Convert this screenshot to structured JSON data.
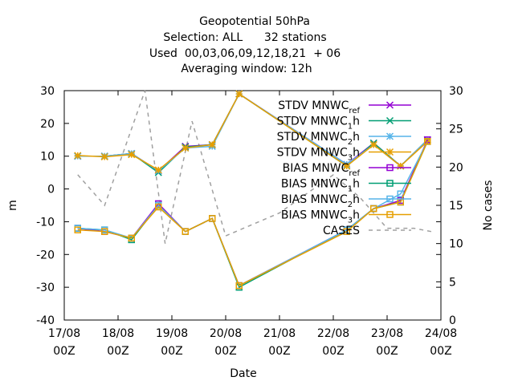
{
  "chart_data": {
    "type": "line",
    "title": [
      "Geopotential 50hPa",
      "Selection: ALL      32 stations",
      "Used  00,03,06,09,12,18,21  + 06",
      "Averaging window: 12h"
    ],
    "xlabel": "Date",
    "ylabel": "m",
    "y2label": "No cases",
    "xlim": [
      "17/08 00Z",
      "24/08 00Z"
    ],
    "ylim": [
      -40,
      30
    ],
    "y2lim": [
      0,
      30
    ],
    "x_ticks": [
      {
        "line1": "17/08",
        "line2": "00Z"
      },
      {
        "line1": "18/08",
        "line2": "00Z"
      },
      {
        "line1": "19/08",
        "line2": "00Z"
      },
      {
        "line1": "20/08",
        "line2": "00Z"
      },
      {
        "line1": "21/08",
        "line2": "00Z"
      },
      {
        "line1": "22/08",
        "line2": "00Z"
      },
      {
        "line1": "23/08",
        "line2": "00Z"
      },
      {
        "line1": "24/08",
        "line2": "00Z"
      }
    ],
    "y_ticks": [
      "30",
      "20",
      "10",
      "0",
      "-10",
      "-20",
      "-30",
      "-40"
    ],
    "y2_ticks": [
      "30",
      "25",
      "20",
      "15",
      "10",
      "5",
      "0"
    ],
    "grid": false,
    "legend_position": "top-right",
    "x": [
      "17/08 06Z",
      "17/08 18Z",
      "18/08 06Z",
      "18/08 18Z",
      "19/08 06Z",
      "19/08 18Z",
      "20/08 06Z",
      "22/08 06Z",
      "22/08 18Z",
      "23/08 06Z",
      "23/08 18Z"
    ],
    "series": [
      {
        "name": "STDV MNWC_ref",
        "label_main": "STDV MNWC",
        "label_sub": "ref",
        "axis": "left",
        "color": "#9400d3",
        "marker": "x-cross",
        "dash": "solid",
        "values": [
          10,
          10,
          10.8,
          5.5,
          13,
          13.5,
          29,
          7.5,
          14,
          7,
          15
        ]
      },
      {
        "name": "STDV MNWC_1h",
        "label_main": "STDV MNWC",
        "label_sub": "1",
        "label_tail": "h",
        "axis": "left",
        "color": "#009e73",
        "marker": "x-cross",
        "dash": "solid",
        "values": [
          10,
          10,
          10.8,
          5,
          12.8,
          13.5,
          29,
          7,
          14,
          7,
          15
        ]
      },
      {
        "name": "STDV MNWC_2h",
        "label_main": "STDV MNWC",
        "label_sub": "2",
        "label_tail": "h",
        "axis": "left",
        "color": "#56b4e9",
        "marker": "asterisk",
        "dash": "solid",
        "values": [
          10,
          10,
          10.8,
          5.5,
          12.5,
          13,
          29,
          7.5,
          13.5,
          7,
          15
        ]
      },
      {
        "name": "STDV MNWC_3h",
        "label_main": "STDV MNWC",
        "label_sub": "3",
        "label_tail": "h",
        "axis": "left",
        "color": "#e69f00",
        "marker": "asterisk",
        "dash": "solid",
        "values": [
          10.2,
          9.8,
          10.5,
          5.8,
          12.5,
          13.5,
          29,
          7,
          13.5,
          7,
          14.5
        ]
      },
      {
        "name": "BIAS MNWC_ref",
        "label_main": "BIAS MNWC",
        "label_sub": "ref",
        "axis": "left",
        "color": "#9400d3",
        "marker": "square",
        "dash": "solid",
        "values": [
          -12,
          -13,
          -15,
          -4.5,
          -13,
          -9,
          -29.5,
          -12.5,
          -6,
          -3.5,
          15
        ]
      },
      {
        "name": "BIAS MNWC_1h",
        "label_main": "BIAS MNWC",
        "label_sub": "1",
        "label_tail": "h",
        "axis": "left",
        "color": "#009e73",
        "marker": "square",
        "dash": "solid",
        "values": [
          -12,
          -12.5,
          -15.5,
          -5,
          -13,
          -9,
          -30,
          -12.5,
          -6,
          -4,
          14.5
        ]
      },
      {
        "name": "BIAS MNWC_2h",
        "label_main": "BIAS MNWC",
        "label_sub": "2",
        "label_tail": "h",
        "axis": "left",
        "color": "#56b4e9",
        "marker": "square",
        "dash": "solid",
        "values": [
          -12,
          -12.5,
          -15,
          -5,
          -13,
          -9,
          -29.5,
          -12.5,
          -6,
          -1.5,
          14.5
        ]
      },
      {
        "name": "BIAS MNWC_3h",
        "label_main": "BIAS MNWC",
        "label_sub": "3",
        "label_tail": "h",
        "axis": "left",
        "color": "#e69f00",
        "marker": "square",
        "dash": "solid",
        "values": [
          -12.5,
          -13,
          -15,
          -5.5,
          -13,
          -9,
          -29.5,
          -13,
          -6,
          -4,
          14.5
        ]
      },
      {
        "name": "CASES",
        "label_main": "CASES",
        "axis": "right",
        "color": "#a0a0a0",
        "marker": "none",
        "dash": "dashed",
        "x": [
          "17/08 06Z",
          "17/08 18Z",
          "18/08 12Z",
          "18/08 21Z",
          "19/08 09Z",
          "19/08 18Z",
          "20/08 00Z",
          "21/08 00Z",
          "22/08 00Z",
          "22/08 12Z",
          "23/08 00Z",
          "23/08 12Z",
          "23/08 21Z"
        ],
        "values": [
          19,
          15,
          30,
          10,
          26,
          17,
          11,
          14,
          19,
          16,
          12,
          12,
          11.5
        ]
      }
    ]
  }
}
